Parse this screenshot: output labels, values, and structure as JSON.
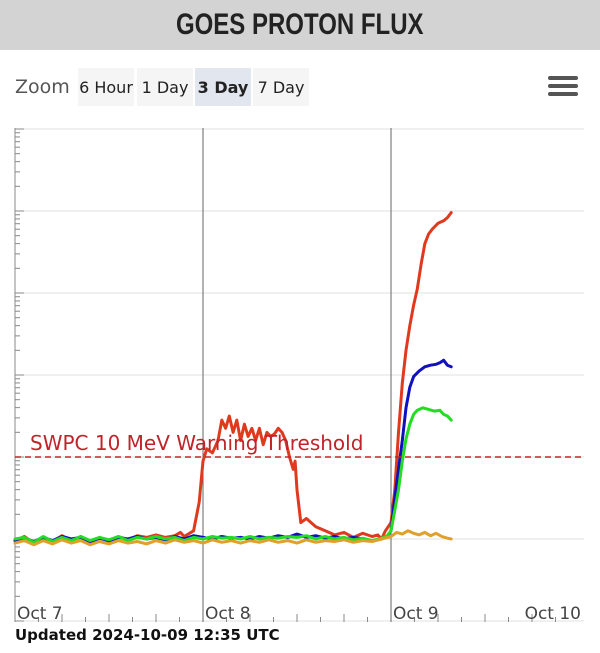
{
  "header": {
    "title": "GOES PROTON FLUX"
  },
  "zoom": {
    "label": "Zoom",
    "buttons": [
      {
        "label": "6 Hour",
        "selected": false
      },
      {
        "label": "1 Day",
        "selected": false
      },
      {
        "label": "3 Day",
        "selected": true
      },
      {
        "label": "7 Day",
        "selected": false
      }
    ]
  },
  "menu": {
    "icon": "hamburger-menu-icon"
  },
  "footer": {
    "updated": "Updated 2024-10-09 12:35 UTC"
  },
  "chart_data": {
    "type": "line",
    "title": "",
    "xlabel": "",
    "ylabel": "",
    "x_tick_labels": [
      "Oct 7",
      "Oct 8",
      "Oct 9",
      "Oct 10"
    ],
    "x_range_days": [
      0,
      3
    ],
    "y_scale": "log",
    "y_decades": [
      -2,
      5
    ],
    "threshold": {
      "label": "SWPC 10 MeV Warning Threshold",
      "value_log10": 1,
      "color": "#c0242b"
    },
    "series": [
      {
        "color": "#e03a1e",
        "points": [
          [
            0.0,
            -0.02
          ],
          [
            0.05,
            0.03
          ],
          [
            0.1,
            -0.05
          ],
          [
            0.15,
            0.02
          ],
          [
            0.2,
            -0.03
          ],
          [
            0.25,
            0.04
          ],
          [
            0.3,
            -0.02
          ],
          [
            0.35,
            0.03
          ],
          [
            0.4,
            -0.04
          ],
          [
            0.45,
            0.02
          ],
          [
            0.5,
            -0.03
          ],
          [
            0.55,
            0.03
          ],
          [
            0.6,
            -0.01
          ],
          [
            0.65,
            0.04
          ],
          [
            0.7,
            0.02
          ],
          [
            0.75,
            0.05
          ],
          [
            0.8,
            0.02
          ],
          [
            0.85,
            0.04
          ],
          [
            0.88,
            0.08
          ],
          [
            0.9,
            0.03
          ],
          [
            0.95,
            0.1
          ],
          [
            0.98,
            0.45
          ],
          [
            1.0,
            0.95
          ],
          [
            1.02,
            1.1
          ],
          [
            1.05,
            1.05
          ],
          [
            1.08,
            1.2
          ],
          [
            1.1,
            1.45
          ],
          [
            1.12,
            1.35
          ],
          [
            1.14,
            1.5
          ],
          [
            1.16,
            1.3
          ],
          [
            1.18,
            1.45
          ],
          [
            1.2,
            1.2
          ],
          [
            1.22,
            1.4
          ],
          [
            1.24,
            1.25
          ],
          [
            1.26,
            1.35
          ],
          [
            1.28,
            1.2
          ],
          [
            1.3,
            1.35
          ],
          [
            1.32,
            1.15
          ],
          [
            1.34,
            1.3
          ],
          [
            1.36,
            1.25
          ],
          [
            1.38,
            1.28
          ],
          [
            1.4,
            1.35
          ],
          [
            1.42,
            1.3
          ],
          [
            1.44,
            1.2
          ],
          [
            1.46,
            1.0
          ],
          [
            1.48,
            0.85
          ],
          [
            1.49,
            0.95
          ],
          [
            1.5,
            0.6
          ],
          [
            1.51,
            0.4
          ],
          [
            1.52,
            0.2
          ],
          [
            1.55,
            0.25
          ],
          [
            1.6,
            0.15
          ],
          [
            1.65,
            0.1
          ],
          [
            1.7,
            0.05
          ],
          [
            1.75,
            0.08
          ],
          [
            1.8,
            0.02
          ],
          [
            1.85,
            0.07
          ],
          [
            1.9,
            0.03
          ],
          [
            1.93,
            0.05
          ],
          [
            1.95,
            0.0
          ],
          [
            1.97,
            0.1
          ],
          [
            2.0,
            0.2
          ],
          [
            2.02,
            0.6
          ],
          [
            2.04,
            1.3
          ],
          [
            2.06,
            1.9
          ],
          [
            2.08,
            2.3
          ],
          [
            2.1,
            2.6
          ],
          [
            2.12,
            2.85
          ],
          [
            2.14,
            3.05
          ],
          [
            2.16,
            3.35
          ],
          [
            2.18,
            3.6
          ],
          [
            2.2,
            3.72
          ],
          [
            2.22,
            3.78
          ],
          [
            2.25,
            3.85
          ],
          [
            2.28,
            3.88
          ],
          [
            2.3,
            3.92
          ],
          [
            2.32,
            3.98
          ]
        ]
      },
      {
        "color": "#1010c0",
        "points": [
          [
            0.0,
            -0.02
          ],
          [
            0.05,
            0.01
          ],
          [
            0.1,
            -0.03
          ],
          [
            0.15,
            0.02
          ],
          [
            0.2,
            -0.02
          ],
          [
            0.25,
            0.03
          ],
          [
            0.3,
            0.0
          ],
          [
            0.35,
            0.02
          ],
          [
            0.4,
            -0.03
          ],
          [
            0.45,
            0.01
          ],
          [
            0.5,
            -0.02
          ],
          [
            0.55,
            0.02
          ],
          [
            0.6,
            0.0
          ],
          [
            0.65,
            0.03
          ],
          [
            0.7,
            0.0
          ],
          [
            0.75,
            0.02
          ],
          [
            0.8,
            -0.01
          ],
          [
            0.85,
            0.03
          ],
          [
            0.9,
            0.0
          ],
          [
            0.95,
            0.04
          ],
          [
            1.0,
            0.02
          ],
          [
            1.05,
            0.0
          ],
          [
            1.1,
            0.03
          ],
          [
            1.15,
            0.01
          ],
          [
            1.2,
            0.02
          ],
          [
            1.25,
            0.0
          ],
          [
            1.3,
            0.03
          ],
          [
            1.35,
            0.01
          ],
          [
            1.4,
            0.04
          ],
          [
            1.45,
            0.02
          ],
          [
            1.5,
            0.06
          ],
          [
            1.55,
            0.02
          ],
          [
            1.6,
            0.04
          ],
          [
            1.65,
            0.01
          ],
          [
            1.7,
            0.03
          ],
          [
            1.75,
            0.0
          ],
          [
            1.8,
            0.02
          ],
          [
            1.85,
            0.0
          ],
          [
            1.9,
            -0.02
          ],
          [
            1.95,
            0.0
          ],
          [
            1.98,
            0.03
          ],
          [
            2.0,
            0.1
          ],
          [
            2.02,
            0.5
          ],
          [
            2.04,
            0.85
          ],
          [
            2.06,
            1.2
          ],
          [
            2.08,
            1.6
          ],
          [
            2.1,
            1.85
          ],
          [
            2.12,
            1.98
          ],
          [
            2.15,
            2.05
          ],
          [
            2.18,
            2.1
          ],
          [
            2.21,
            2.12
          ],
          [
            2.24,
            2.13
          ],
          [
            2.26,
            2.15
          ],
          [
            2.28,
            2.18
          ],
          [
            2.3,
            2.12
          ],
          [
            2.32,
            2.1
          ]
        ]
      },
      {
        "color": "#22dd22",
        "points": [
          [
            0.0,
            0.0
          ],
          [
            0.05,
            0.02
          ],
          [
            0.1,
            -0.04
          ],
          [
            0.15,
            0.03
          ],
          [
            0.2,
            -0.03
          ],
          [
            0.25,
            0.02
          ],
          [
            0.3,
            -0.02
          ],
          [
            0.35,
            0.03
          ],
          [
            0.4,
            -0.02
          ],
          [
            0.45,
            0.02
          ],
          [
            0.5,
            -0.01
          ],
          [
            0.55,
            0.03
          ],
          [
            0.6,
            -0.02
          ],
          [
            0.65,
            0.02
          ],
          [
            0.7,
            0.0
          ],
          [
            0.75,
            0.03
          ],
          [
            0.8,
            0.0
          ],
          [
            0.85,
            0.02
          ],
          [
            0.9,
            -0.02
          ],
          [
            0.95,
            0.02
          ],
          [
            1.0,
            0.0
          ],
          [
            1.05,
            0.03
          ],
          [
            1.1,
            0.01
          ],
          [
            1.15,
            0.02
          ],
          [
            1.2,
            0.0
          ],
          [
            1.25,
            0.03
          ],
          [
            1.3,
            0.0
          ],
          [
            1.35,
            0.02
          ],
          [
            1.4,
            0.01
          ],
          [
            1.45,
            0.03
          ],
          [
            1.5,
            0.02
          ],
          [
            1.55,
            0.04
          ],
          [
            1.6,
            0.0
          ],
          [
            1.65,
            0.03
          ],
          [
            1.7,
            0.0
          ],
          [
            1.75,
            0.02
          ],
          [
            1.8,
            -0.01
          ],
          [
            1.85,
            0.01
          ],
          [
            1.9,
            -0.02
          ],
          [
            1.95,
            0.01
          ],
          [
            1.98,
            0.04
          ],
          [
            2.0,
            0.1
          ],
          [
            2.02,
            0.35
          ],
          [
            2.04,
            0.6
          ],
          [
            2.06,
            0.95
          ],
          [
            2.08,
            1.22
          ],
          [
            2.1,
            1.4
          ],
          [
            2.12,
            1.52
          ],
          [
            2.14,
            1.57
          ],
          [
            2.17,
            1.6
          ],
          [
            2.2,
            1.58
          ],
          [
            2.23,
            1.56
          ],
          [
            2.26,
            1.57
          ],
          [
            2.28,
            1.52
          ],
          [
            2.3,
            1.5
          ],
          [
            2.32,
            1.45
          ]
        ]
      },
      {
        "color": "#e0a02a",
        "points": [
          [
            0.0,
            -0.05
          ],
          [
            0.05,
            -0.02
          ],
          [
            0.1,
            -0.07
          ],
          [
            0.15,
            -0.02
          ],
          [
            0.2,
            -0.06
          ],
          [
            0.25,
            -0.01
          ],
          [
            0.3,
            -0.05
          ],
          [
            0.35,
            -0.02
          ],
          [
            0.4,
            -0.07
          ],
          [
            0.45,
            -0.03
          ],
          [
            0.5,
            -0.06
          ],
          [
            0.55,
            -0.02
          ],
          [
            0.6,
            -0.05
          ],
          [
            0.65,
            -0.03
          ],
          [
            0.7,
            -0.06
          ],
          [
            0.75,
            -0.02
          ],
          [
            0.8,
            -0.05
          ],
          [
            0.85,
            -0.01
          ],
          [
            0.9,
            -0.04
          ],
          [
            0.95,
            -0.02
          ],
          [
            1.0,
            -0.05
          ],
          [
            1.05,
            -0.01
          ],
          [
            1.1,
            -0.04
          ],
          [
            1.15,
            -0.02
          ],
          [
            1.2,
            -0.05
          ],
          [
            1.25,
            -0.02
          ],
          [
            1.3,
            -0.04
          ],
          [
            1.35,
            -0.01
          ],
          [
            1.4,
            -0.04
          ],
          [
            1.45,
            -0.02
          ],
          [
            1.5,
            -0.05
          ],
          [
            1.55,
            -0.01
          ],
          [
            1.6,
            -0.04
          ],
          [
            1.65,
            -0.02
          ],
          [
            1.7,
            -0.03
          ],
          [
            1.75,
            -0.01
          ],
          [
            1.8,
            -0.04
          ],
          [
            1.85,
            -0.02
          ],
          [
            1.9,
            -0.03
          ],
          [
            1.95,
            0.0
          ],
          [
            2.0,
            0.03
          ],
          [
            2.03,
            0.08
          ],
          [
            2.06,
            0.06
          ],
          [
            2.09,
            0.1
          ],
          [
            2.12,
            0.07
          ],
          [
            2.15,
            0.05
          ],
          [
            2.18,
            0.08
          ],
          [
            2.21,
            0.04
          ],
          [
            2.24,
            0.07
          ],
          [
            2.27,
            0.03
          ],
          [
            2.3,
            0.01
          ],
          [
            2.32,
            0.0
          ]
        ]
      }
    ]
  }
}
